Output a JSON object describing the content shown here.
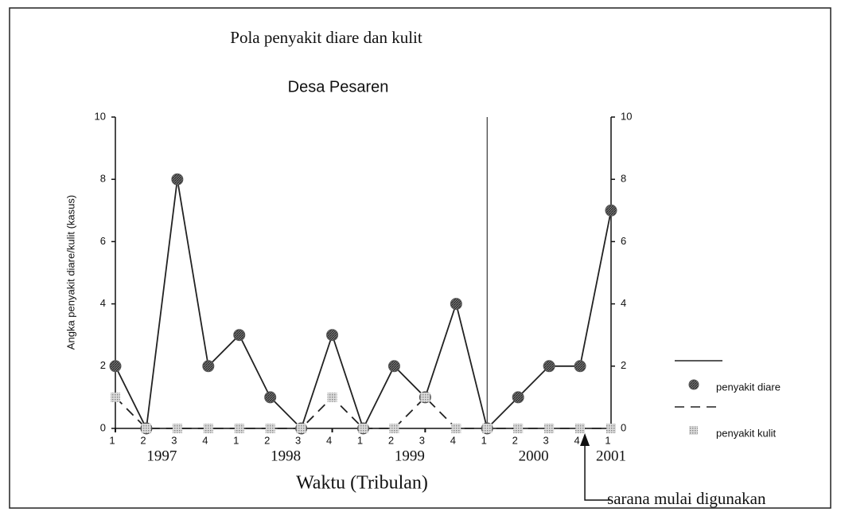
{
  "chart_data": {
    "type": "line",
    "title": "Pola  penyakit diare dan kulit",
    "subtitle": "Desa Pesaren",
    "x_label": "Waktu (Tribulan)",
    "y_label": "Angka penyakit diare/kulit (kasus)",
    "categories": [
      "1",
      "2",
      "3",
      "4",
      "1",
      "2",
      "3",
      "4",
      "1",
      "2",
      "3",
      "4",
      "1",
      "2",
      "3",
      "4",
      "1"
    ],
    "year_labels": [
      "1997",
      "1998",
      "1999",
      "2000",
      "2001"
    ],
    "series": [
      {
        "name": "penyakit diare",
        "color": "#222222",
        "values": [
          2,
          0,
          8,
          2,
          3,
          1,
          0,
          3,
          0,
          2,
          1,
          4,
          0,
          1,
          2,
          2,
          7
        ]
      },
      {
        "name": "penyakit kulit",
        "color": "#222222",
        "values": [
          1,
          0,
          0,
          0,
          0,
          0,
          0,
          1,
          0,
          0,
          1,
          0,
          0,
          0,
          0,
          0,
          0
        ]
      }
    ],
    "ylim": [
      0,
      10
    ],
    "yticks": [
      0,
      2,
      4,
      6,
      8,
      10
    ],
    "y2lim": [
      0,
      10
    ],
    "y2ticks": [
      0,
      2,
      4,
      6,
      8,
      10
    ],
    "annotation": "sarana mulai digunakan"
  }
}
